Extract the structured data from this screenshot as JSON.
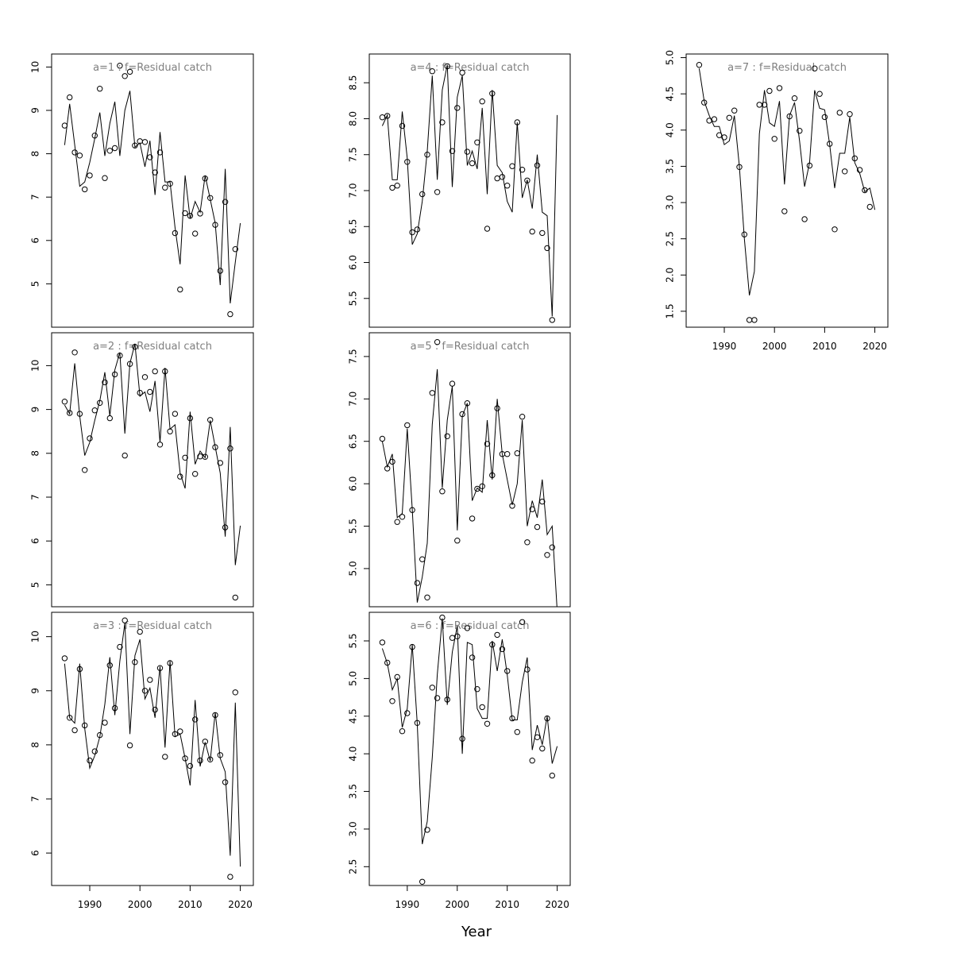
{
  "figure": {
    "xlabel": "Year",
    "line_color": "#000000",
    "title_color": "#7f7f7f",
    "background": "#ffffff"
  },
  "chart_data": [
    {
      "type": "scatter",
      "title": "a=1  :  f=Residual catch",
      "xlim": [
        1982.4,
        2022.6
      ],
      "ylim": [
        4.0,
        10.3
      ],
      "yticks": [
        5,
        6,
        7,
        8,
        9,
        10
      ],
      "xticks": [],
      "x": [
        1985,
        1986,
        1987,
        1988,
        1989,
        1990,
        1991,
        1992,
        1993,
        1994,
        1995,
        1996,
        1997,
        1998,
        1999,
        2000,
        2001,
        2002,
        2003,
        2004,
        2005,
        2006,
        2007,
        2008,
        2009,
        2010,
        2011,
        2012,
        2013,
        2014,
        2015,
        2016,
        2017,
        2018,
        2019,
        2020
      ],
      "observed": [
        8.65,
        9.3,
        8.03,
        7.96,
        7.18,
        7.5,
        8.42,
        9.5,
        7.44,
        8.07,
        8.13,
        10.03,
        9.79,
        9.89,
        8.19,
        8.29,
        8.27,
        7.92,
        7.57,
        8.03,
        7.22,
        7.31,
        6.17,
        4.87,
        6.63,
        6.57,
        6.16,
        6.62,
        7.43,
        6.98,
        6.36,
        5.3,
        6.89,
        4.3,
        5.8,
        null
      ],
      "fitted": [
        8.2,
        9.15,
        8.2,
        7.25,
        7.35,
        7.8,
        8.35,
        8.95,
        7.95,
        8.7,
        9.2,
        7.95,
        9.0,
        9.45,
        8.15,
        8.25,
        7.7,
        8.3,
        7.05,
        8.5,
        7.35,
        7.35,
        6.3,
        5.45,
        7.5,
        6.5,
        6.9,
        6.65,
        7.5,
        6.95,
        6.4,
        4.97,
        7.65,
        4.55,
        5.5,
        6.4
      ]
    },
    {
      "type": "scatter",
      "title": "a=2  :  f=Residual catch",
      "xlim": [
        1982.4,
        2022.6
      ],
      "ylim": [
        4.5,
        10.75
      ],
      "yticks": [
        5,
        6,
        7,
        8,
        9,
        10
      ],
      "xticks": [],
      "x": [
        1985,
        1986,
        1987,
        1988,
        1989,
        1990,
        1991,
        1992,
        1993,
        1994,
        1995,
        1996,
        1997,
        1998,
        1999,
        2000,
        2001,
        2002,
        2003,
        2004,
        2005,
        2006,
        2007,
        2008,
        2009,
        2010,
        2011,
        2012,
        2013,
        2014,
        2015,
        2016,
        2017,
        2018,
        2019,
        2020
      ],
      "observed": [
        9.18,
        8.92,
        10.3,
        8.9,
        7.62,
        8.34,
        8.98,
        9.15,
        9.62,
        8.8,
        9.8,
        10.23,
        7.95,
        10.04,
        10.43,
        9.38,
        9.74,
        9.4,
        9.87,
        8.2,
        9.87,
        8.5,
        8.9,
        7.47,
        7.9,
        8.8,
        7.53,
        7.93,
        7.92,
        8.76,
        8.14,
        7.78,
        6.31,
        8.11,
        4.71,
        null
      ],
      "fitted": [
        9.1,
        8.9,
        10.05,
        8.85,
        7.95,
        8.25,
        8.75,
        9.2,
        9.85,
        8.85,
        9.9,
        10.3,
        8.45,
        10.05,
        10.5,
        9.3,
        9.4,
        8.95,
        9.65,
        8.25,
        9.95,
        8.55,
        8.65,
        7.55,
        7.2,
        8.95,
        7.75,
        8.05,
        7.9,
        8.75,
        8.15,
        7.55,
        6.1,
        8.6,
        5.45,
        6.35
      ]
    },
    {
      "type": "scatter",
      "title": "a=3  :  f=Residual catch",
      "xlim": [
        1982.4,
        2022.6
      ],
      "ylim": [
        5.4,
        10.45
      ],
      "yticks": [
        6,
        7,
        8,
        9,
        10
      ],
      "xticks": [
        1990,
        2000,
        2010,
        2020
      ],
      "x": [
        1985,
        1986,
        1987,
        1988,
        1989,
        1990,
        1991,
        1992,
        1993,
        1994,
        1995,
        1996,
        1997,
        1998,
        1999,
        2000,
        2001,
        2002,
        2003,
        2004,
        2005,
        2006,
        2007,
        2008,
        2009,
        2010,
        2011,
        2012,
        2013,
        2014,
        2015,
        2016,
        2017,
        2018,
        2019,
        2020
      ],
      "observed": [
        9.6,
        8.5,
        8.27,
        9.4,
        8.36,
        7.71,
        7.88,
        8.18,
        8.41,
        9.47,
        8.68,
        9.81,
        10.3,
        7.99,
        9.53,
        10.09,
        9.0,
        9.2,
        8.65,
        9.42,
        7.78,
        9.51,
        8.2,
        8.25,
        7.75,
        7.61,
        8.47,
        7.71,
        8.06,
        7.73,
        8.55,
        7.81,
        7.31,
        5.56,
        8.97,
        null
      ],
      "fitted": [
        9.5,
        8.5,
        8.4,
        9.5,
        8.3,
        7.57,
        7.8,
        8.15,
        8.75,
        9.62,
        8.55,
        9.55,
        10.25,
        8.2,
        9.65,
        9.95,
        8.85,
        9.05,
        8.5,
        9.45,
        7.95,
        9.55,
        8.15,
        8.2,
        7.75,
        7.25,
        8.83,
        7.6,
        8.05,
        7.7,
        8.6,
        7.75,
        7.5,
        5.95,
        8.78,
        5.75
      ]
    },
    {
      "type": "scatter",
      "title": "a=4  :  f=Residual catch",
      "xlim": [
        1982.4,
        2022.6
      ],
      "ylim": [
        5.1,
        8.9
      ],
      "yticks": [
        5.5,
        6.0,
        6.5,
        7.0,
        7.5,
        8.0,
        8.5
      ],
      "xticks": [],
      "x": [
        1985,
        1986,
        1987,
        1988,
        1989,
        1990,
        1991,
        1992,
        1993,
        1994,
        1995,
        1996,
        1997,
        1998,
        1999,
        2000,
        2001,
        2002,
        2003,
        2004,
        2005,
        2006,
        2007,
        2008,
        2009,
        2010,
        2011,
        2012,
        2013,
        2014,
        2015,
        2016,
        2017,
        2018,
        2019,
        2020
      ],
      "observed": [
        8.02,
        8.04,
        7.04,
        7.07,
        7.9,
        7.4,
        6.42,
        6.46,
        6.95,
        7.5,
        8.66,
        6.98,
        7.95,
        8.73,
        7.55,
        8.15,
        8.64,
        7.54,
        7.38,
        7.67,
        8.24,
        6.47,
        8.35,
        7.17,
        7.19,
        7.07,
        7.34,
        7.95,
        7.29,
        7.14,
        6.43,
        7.35,
        6.41,
        6.2,
        5.2,
        null
      ],
      "fitted": [
        7.9,
        8.05,
        7.15,
        7.15,
        8.1,
        7.45,
        6.25,
        6.4,
        6.85,
        7.55,
        8.6,
        7.15,
        8.4,
        8.75,
        7.05,
        8.3,
        8.6,
        7.35,
        7.55,
        7.3,
        8.15,
        6.95,
        8.4,
        7.35,
        7.25,
        6.85,
        6.7,
        7.95,
        6.9,
        7.15,
        6.75,
        7.5,
        6.7,
        6.65,
        5.25,
        8.05
      ]
    },
    {
      "type": "scatter",
      "title": "a=5  :  f=Residual catch",
      "xlim": [
        1982.4,
        2022.6
      ],
      "ylim": [
        4.55,
        7.78
      ],
      "yticks": [
        5.0,
        5.5,
        6.0,
        6.5,
        7.0,
        7.5
      ],
      "xticks": [],
      "x": [
        1985,
        1986,
        1987,
        1988,
        1989,
        1990,
        1991,
        1992,
        1993,
        1994,
        1995,
        1996,
        1997,
        1998,
        1999,
        2000,
        2001,
        2002,
        2003,
        2004,
        2005,
        2006,
        2007,
        2008,
        2009,
        2010,
        2011,
        2012,
        2013,
        2014,
        2015,
        2016,
        2017,
        2018,
        2019,
        2020
      ],
      "observed": [
        6.53,
        6.18,
        6.26,
        5.55,
        5.61,
        6.69,
        5.69,
        4.83,
        5.11,
        4.66,
        7.07,
        7.67,
        5.91,
        6.56,
        7.18,
        5.33,
        6.82,
        6.95,
        5.59,
        5.94,
        5.97,
        6.47,
        6.1,
        6.89,
        6.35,
        6.35,
        5.74,
        6.36,
        6.79,
        5.31,
        5.7,
        5.49,
        5.79,
        5.16,
        5.25,
        null
      ],
      "fitted": [
        6.5,
        6.2,
        6.35,
        5.6,
        5.65,
        6.65,
        5.7,
        4.6,
        4.9,
        5.3,
        6.7,
        7.35,
        5.95,
        6.75,
        7.15,
        5.45,
        6.8,
        6.95,
        5.8,
        5.95,
        5.9,
        6.75,
        6.05,
        7.0,
        6.35,
        6.05,
        5.75,
        6.0,
        6.75,
        5.5,
        5.8,
        5.6,
        6.05,
        5.4,
        5.5,
        4.5
      ]
    },
    {
      "type": "scatter",
      "title": "a=6  :  f=Residual catch",
      "xlim": [
        1982.4,
        2022.6
      ],
      "ylim": [
        2.25,
        5.88
      ],
      "yticks": [
        2.5,
        3.0,
        3.5,
        4.0,
        4.5,
        5.0,
        5.5
      ],
      "xticks": [
        1990,
        2000,
        2010,
        2020
      ],
      "x": [
        1985,
        1986,
        1987,
        1988,
        1989,
        1990,
        1991,
        1992,
        1993,
        1994,
        1995,
        1996,
        1997,
        1998,
        1999,
        2000,
        2001,
        2002,
        2003,
        2004,
        2005,
        2006,
        2007,
        2008,
        2009,
        2010,
        2011,
        2012,
        2013,
        2014,
        2015,
        2016,
        2017,
        2018,
        2019,
        2020
      ],
      "observed": [
        5.48,
        5.21,
        4.7,
        5.02,
        4.3,
        4.54,
        5.42,
        4.41,
        2.3,
        2.99,
        4.88,
        4.74,
        5.81,
        4.72,
        5.54,
        5.56,
        4.2,
        5.67,
        5.28,
        4.86,
        4.62,
        4.4,
        5.45,
        5.58,
        5.39,
        5.1,
        4.47,
        4.29,
        5.75,
        5.12,
        3.91,
        4.22,
        4.07,
        4.47,
        3.71,
        null
      ],
      "fitted": [
        5.4,
        5.2,
        4.85,
        5.0,
        4.35,
        4.6,
        5.45,
        4.4,
        2.8,
        3.1,
        3.95,
        5.05,
        5.8,
        4.65,
        5.35,
        5.7,
        4.0,
        5.48,
        5.45,
        4.6,
        4.47,
        4.47,
        5.5,
        5.1,
        5.52,
        5.05,
        4.45,
        4.45,
        4.95,
        5.28,
        4.05,
        4.38,
        4.12,
        4.5,
        3.87,
        4.1
      ]
    },
    {
      "type": "scatter",
      "title": "a=7  :  f=Residual catch",
      "xlim": [
        1982.4,
        2022.6
      ],
      "ylim": [
        1.28,
        5.05
      ],
      "yticks": [
        1.5,
        2.0,
        2.5,
        3.0,
        3.5,
        4.0,
        4.5,
        5.0
      ],
      "xticks": [
        1990,
        2000,
        2010,
        2020
      ],
      "x": [
        1985,
        1986,
        1987,
        1988,
        1989,
        1990,
        1991,
        1992,
        1993,
        1994,
        1995,
        1996,
        1997,
        1998,
        1999,
        2000,
        2001,
        2002,
        2003,
        2004,
        2005,
        2006,
        2007,
        2008,
        2009,
        2010,
        2011,
        2012,
        2013,
        2014,
        2015,
        2016,
        2017,
        2018,
        2019,
        2020
      ],
      "observed": [
        4.9,
        4.38,
        4.13,
        4.15,
        3.93,
        3.9,
        4.17,
        4.27,
        3.49,
        2.56,
        1.38,
        1.38,
        4.35,
        4.35,
        4.54,
        3.88,
        4.58,
        2.88,
        4.19,
        4.44,
        3.99,
        2.77,
        3.51,
        4.85,
        4.5,
        4.18,
        3.81,
        2.63,
        4.24,
        3.43,
        4.22,
        3.61,
        3.45,
        3.17,
        2.94,
        null
      ],
      "fitted": [
        4.85,
        4.4,
        4.2,
        4.05,
        4.05,
        3.8,
        3.85,
        4.2,
        3.5,
        2.5,
        1.72,
        2.05,
        3.95,
        4.55,
        4.1,
        4.05,
        4.4,
        3.25,
        4.2,
        4.38,
        3.85,
        3.22,
        3.55,
        4.55,
        4.3,
        4.28,
        3.8,
        3.2,
        3.68,
        3.68,
        4.18,
        3.55,
        3.4,
        3.15,
        3.2,
        2.9
      ]
    }
  ]
}
